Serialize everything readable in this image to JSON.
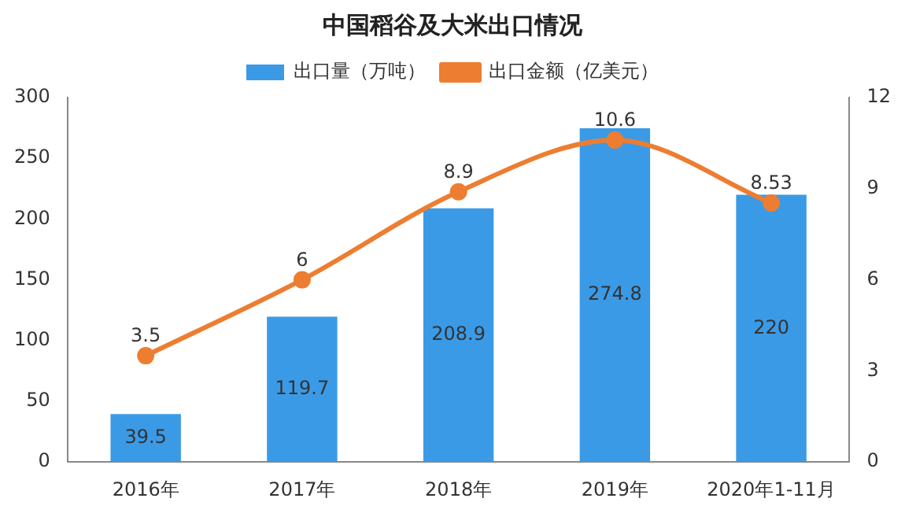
{
  "chart_data": {
    "type": "bar",
    "title": "中国稻谷及大米出口情况",
    "categories": [
      "2016年",
      "2017年",
      "2018年",
      "2019年",
      "2020年1-11月"
    ],
    "series": [
      {
        "name": "出口量（万吨）",
        "color": "#3b9ae6",
        "values": [
          39.5,
          119.7,
          208.9,
          274.8,
          220
        ]
      },
      {
        "name": "出口金额（亿美元）",
        "type": "line",
        "axis": "y2",
        "color": "#ed7d31",
        "values": [
          3.5,
          6,
          8.9,
          10.6,
          8.53
        ],
        "marker": "circle"
      }
    ],
    "ylim": [
      0,
      300
    ],
    "yticks": [
      0,
      50,
      100,
      150,
      200,
      250,
      300
    ],
    "y2lim": [
      0,
      12
    ],
    "y2ticks": [
      0,
      3,
      6,
      9,
      12
    ],
    "grid": false,
    "legend": "top",
    "data_labels": true
  }
}
